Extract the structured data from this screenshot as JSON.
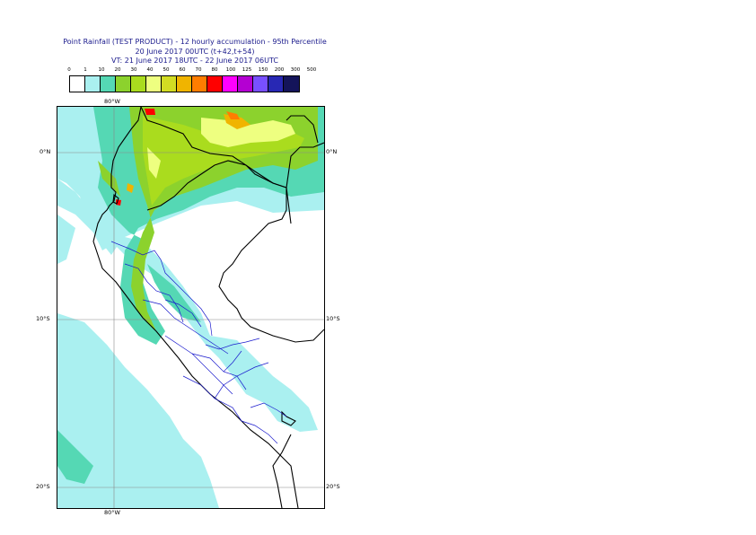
{
  "title": {
    "line1": "Point Rainfall (TEST PRODUCT) - 12 hourly accumulation - 95th Percentile",
    "line2": "20 June 2017 00UTC (t+42,t+54)",
    "line3": "VT: 21 June 2017 18UTC - 22 June 2017 06UTC"
  },
  "legend": {
    "thresholds": [
      "0",
      "1",
      "10",
      "20",
      "30",
      "40",
      "50",
      "60",
      "70",
      "80",
      "100",
      "125",
      "150",
      "200",
      "300",
      "500"
    ],
    "colors": [
      "#ffffff",
      "#aaf0f0",
      "#55d8b4",
      "#8cd22d",
      "#aadc1e",
      "#eeff80",
      "#d2dc23",
      "#f0b400",
      "#ff7d00",
      "#ff0000",
      "#ff00ff",
      "#b400d2",
      "#7850ff",
      "#2828b4",
      "#14145a"
    ]
  },
  "map": {
    "lon_labels": [
      "80°W",
      "80°W"
    ],
    "lat_labels": [
      "0°N",
      "10°S",
      "20°S"
    ],
    "lat_labels_right": [
      "0°N",
      "10°S",
      "20°S"
    ]
  }
}
